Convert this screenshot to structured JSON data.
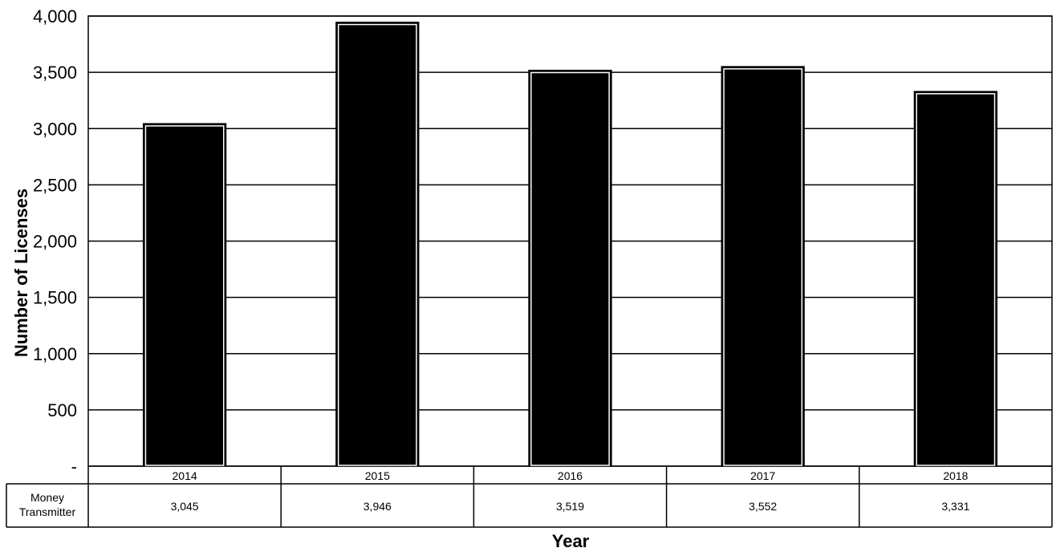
{
  "chart_data": {
    "type": "bar",
    "categories": [
      "2014",
      "2015",
      "2016",
      "2017",
      "2018"
    ],
    "series": [
      {
        "name": "Money Transmitter",
        "name_lines": [
          "Money",
          "Transmitter"
        ],
        "values": [
          3045,
          3946,
          3519,
          3552,
          3331
        ]
      }
    ],
    "value_labels": [
      "3,045",
      "3,946",
      "3,519",
      "3,552",
      "3,331"
    ],
    "y_ticks": [
      0,
      500,
      1000,
      1500,
      2000,
      2500,
      3000,
      3500,
      4000
    ],
    "y_tick_labels": [
      "-",
      "500",
      "1,000",
      "1,500",
      "2,000",
      "2,500",
      "3,000",
      "3,500",
      "4,000"
    ],
    "ylim": [
      0,
      4000
    ],
    "xlabel": "Year",
    "ylabel": "Number of Licenses",
    "grid": true,
    "legend": "data table below chart",
    "colors": {
      "bar": "#000000",
      "bar_outline": "#ffffff",
      "grid": "#000000",
      "background": "#ffffff"
    }
  }
}
